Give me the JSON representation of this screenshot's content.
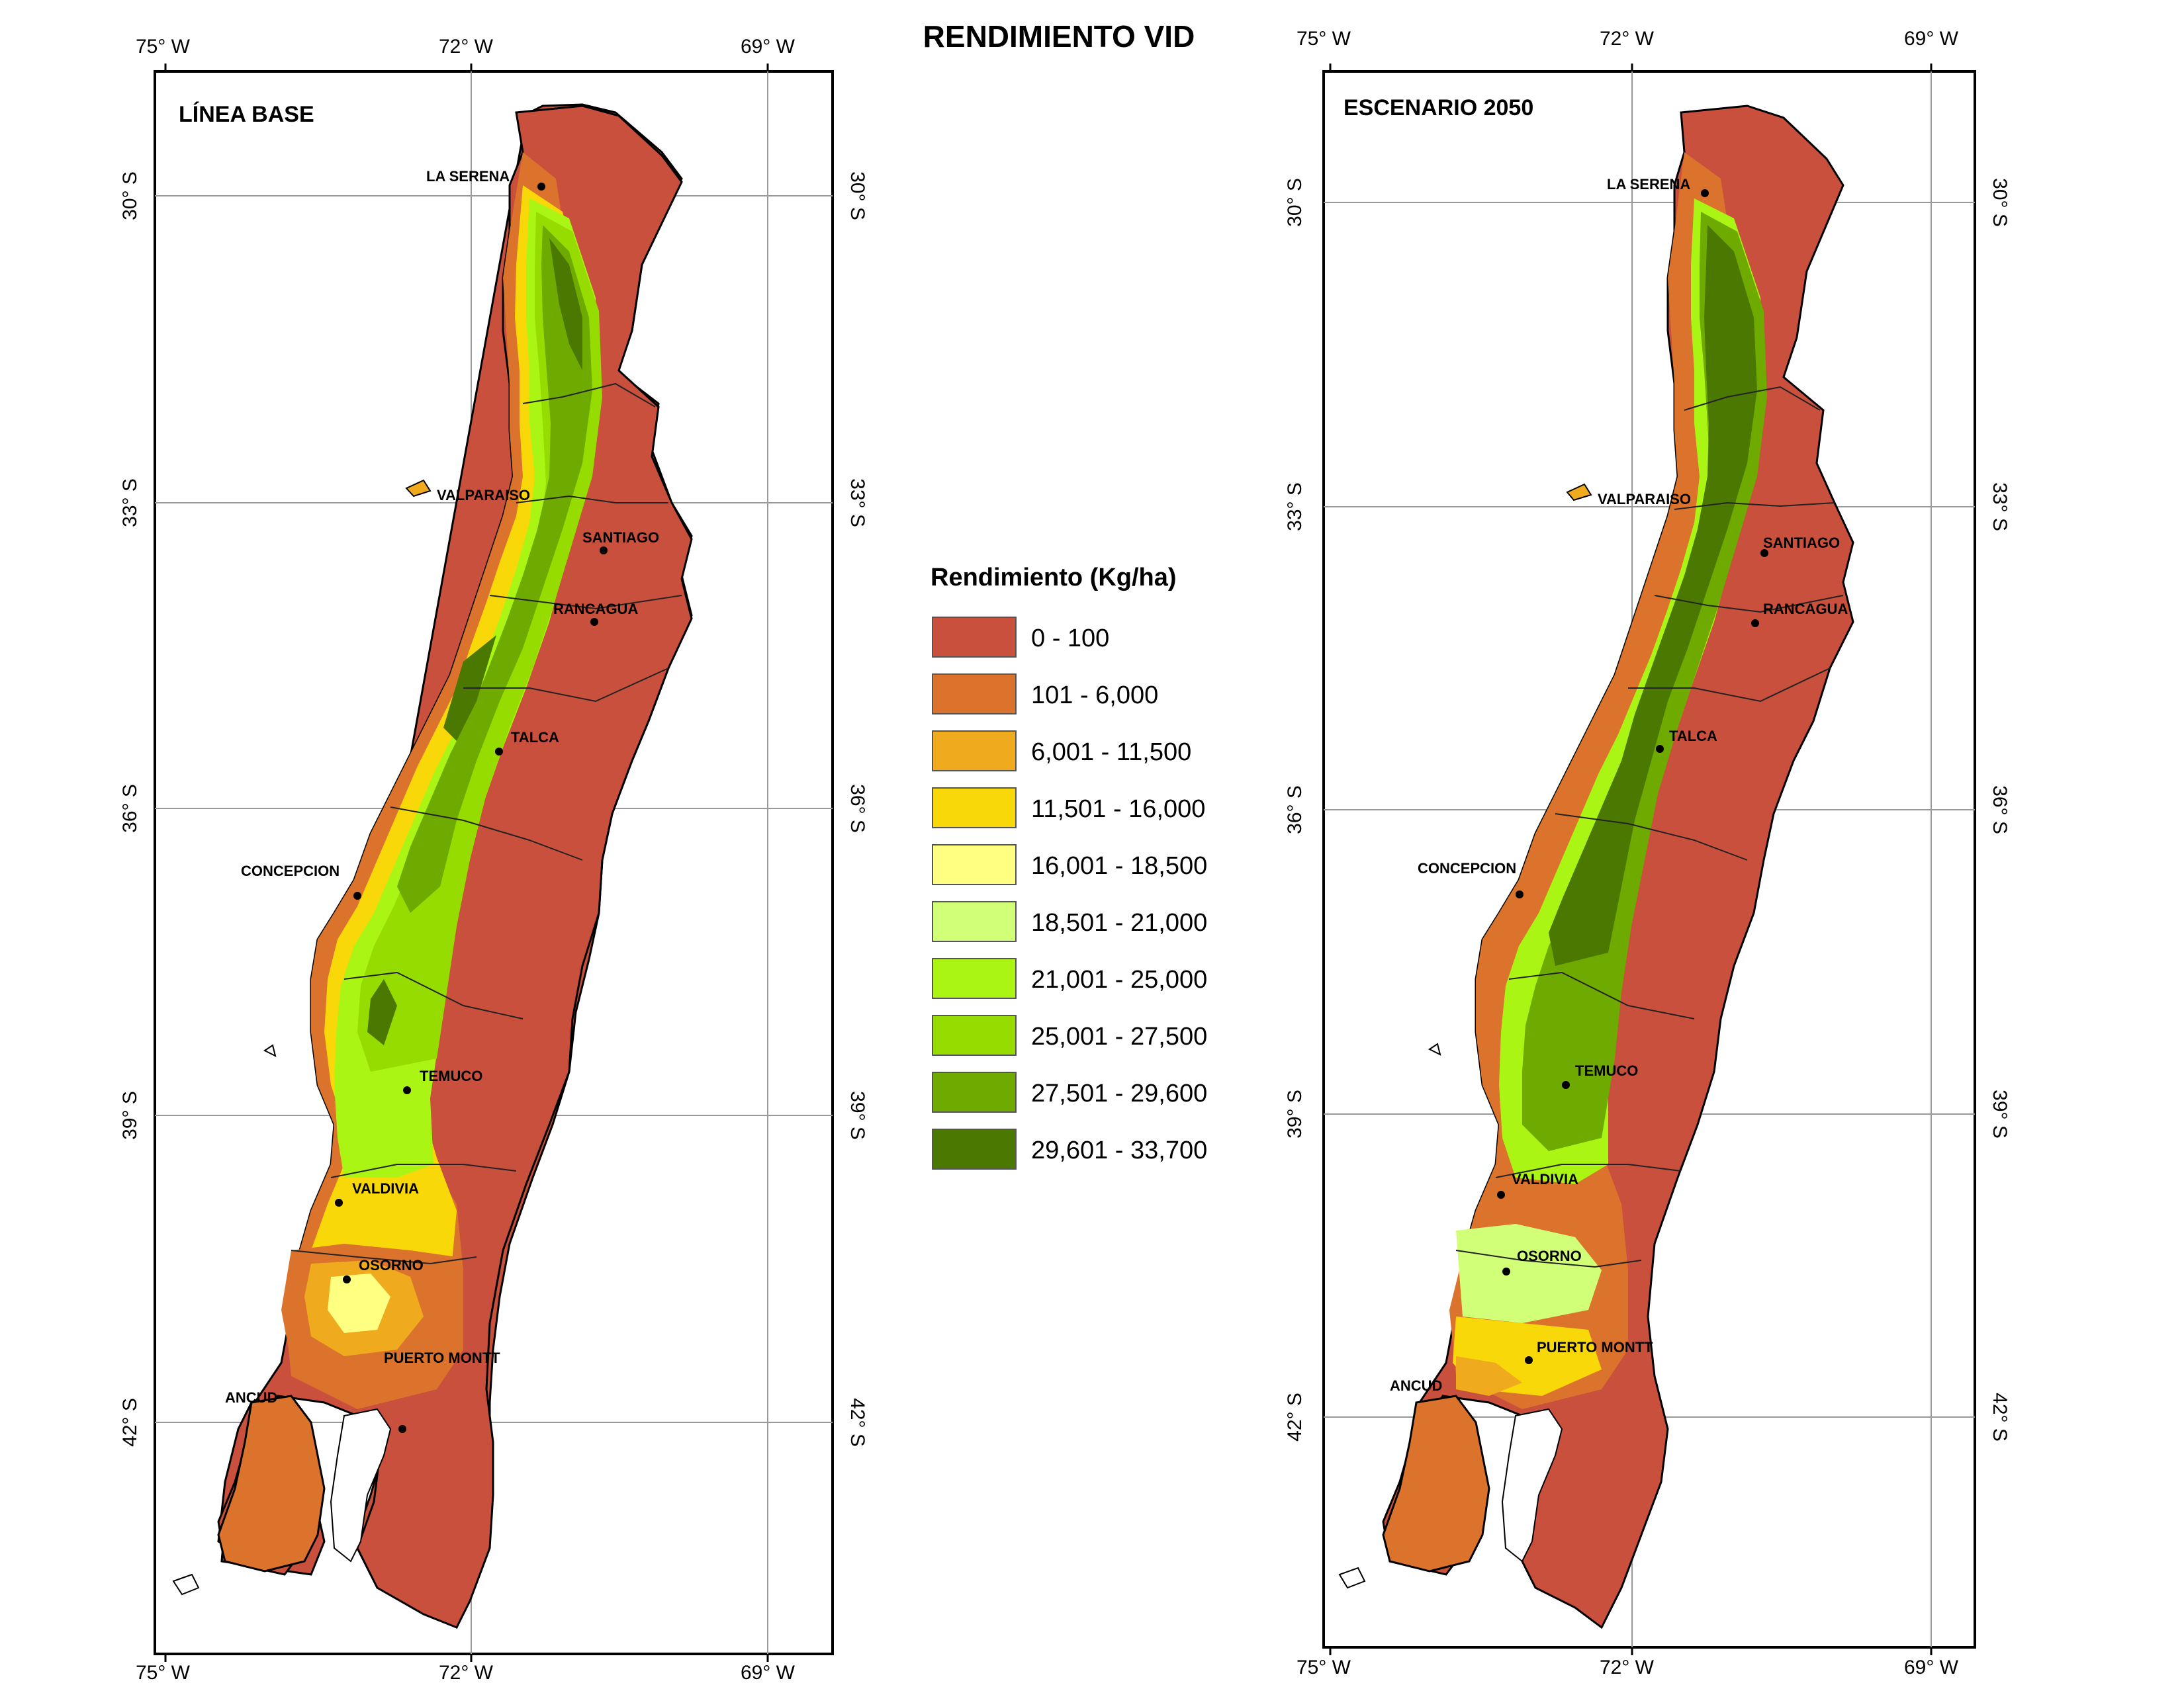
{
  "title": "RENDIMIENTO VID",
  "legend": {
    "title": "Rendimiento (Kg/ha)",
    "classes": [
      {
        "label": "0 - 100",
        "color": "#C8503C"
      },
      {
        "label": "101 - 6,000",
        "color": "#DC732C"
      },
      {
        "label": "6,001 - 11,500",
        "color": "#EFAA1E"
      },
      {
        "label": "11,501 - 16,000",
        "color": "#F9D80A"
      },
      {
        "label": "16,001 - 18,500",
        "color": "#FFFF82"
      },
      {
        "label": "18,501 - 21,000",
        "color": "#D2FF78"
      },
      {
        "label": "21,001 - 25,000",
        "color": "#AAF514"
      },
      {
        "label": "25,001 - 27,500",
        "color": "#96DC00"
      },
      {
        "label": "27,501 - 29,600",
        "color": "#6EAA00"
      },
      {
        "label": "29,601 - 33,700",
        "color": "#4A7800"
      }
    ]
  },
  "maps": [
    {
      "panel_label": "LÍNEA BASE",
      "lon_labels": [
        "75° W",
        "72° W",
        "69° W"
      ],
      "lat_labels": [
        "30° S",
        "33° S",
        "36° S",
        "39° S",
        "42° S"
      ],
      "cities": [
        "LA SERENA",
        "VALPARAISO",
        "SANTIAGO",
        "RANCAGUA",
        "TALCA",
        "CONCEPCION",
        "TEMUCO",
        "VALDIVIA",
        "OSORNO",
        "PUERTO MONTT",
        "ANCUD"
      ]
    },
    {
      "panel_label": "ESCENARIO 2050",
      "lon_labels": [
        "75° W",
        "72° W",
        "69° W"
      ],
      "lat_labels": [
        "30° S",
        "33° S",
        "36° S",
        "39° S",
        "42° S"
      ],
      "cities": [
        "LA SERENA",
        "VALPARAISO",
        "SANTIAGO",
        "RANCAGUA",
        "TALCA",
        "CONCEPCION",
        "TEMUCO",
        "VALDIVIA",
        "OSORNO",
        "PUERTO MONTT",
        "ANCUD"
      ]
    }
  ]
}
